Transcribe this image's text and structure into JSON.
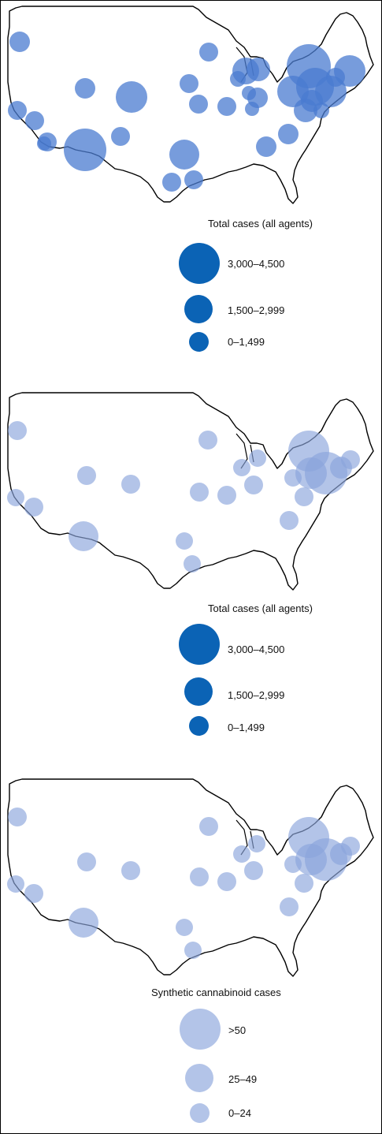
{
  "colors": {
    "dark_bubble": "#0b63b5",
    "light_bubble": "#8aa5dc",
    "light_bubble_top": "#4a7bd0",
    "border": "#000000"
  },
  "maps": [
    {
      "legend_title": "Total cases (all agents)",
      "legend": [
        {
          "label": "3,000–4,500",
          "size": "large"
        },
        {
          "label": "1,500–2,999",
          "size": "medium"
        },
        {
          "label": "0–1,499",
          "size": "small"
        }
      ]
    },
    {
      "legend_title": "Total cases (all agents)",
      "legend": [
        {
          "label": "3,000–4,500",
          "size": "large"
        },
        {
          "label": "1,500–2,999",
          "size": "medium"
        },
        {
          "label": "0–1,499",
          "size": "small"
        }
      ]
    },
    {
      "legend_title": "Synthetic cannabinoid cases",
      "legend": [
        {
          "label": ">50",
          "size": "large"
        },
        {
          "label": "25–49",
          "size": "medium"
        },
        {
          "label": "0–24",
          "size": "small"
        }
      ]
    }
  ]
}
